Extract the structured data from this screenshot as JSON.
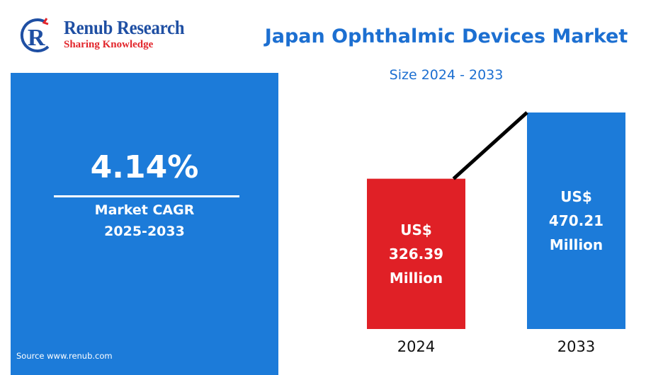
{
  "brand": {
    "name": "Renub Research",
    "tagline": "Sharing Knowledge"
  },
  "header": {
    "title": "Japan Ophthalmic Devices Market",
    "subtitle": "Size 2024 - 2033"
  },
  "cagr_panel": {
    "value": "4.14%",
    "label": "Market CAGR",
    "period": "2025-2033",
    "source": "Source  www.renub.com"
  },
  "colors": {
    "title_blue": "#1c6fd1",
    "panel_blue": "#1c7bd9",
    "bar_2024": "#e02026",
    "bar_2033": "#1c7bd9",
    "trend_line": "#000000"
  },
  "chart_data": {
    "type": "bar",
    "categories": [
      "2024",
      "2033"
    ],
    "values": [
      326.39,
      470.21
    ],
    "unit": "US$ Million",
    "bar_labels": [
      [
        "US$",
        "326.39",
        "Million"
      ],
      [
        "US$",
        "470.21",
        "Million"
      ]
    ],
    "trend_line": true,
    "grid": false,
    "legend": "none"
  }
}
